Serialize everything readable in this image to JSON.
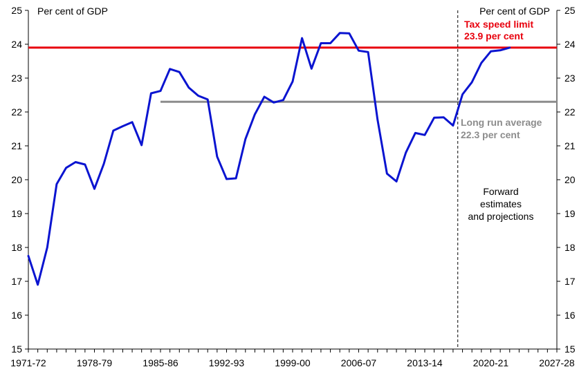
{
  "chart_data": {
    "type": "line",
    "y_unit_left": "Per cent of GDP",
    "y_unit_right": "Per cent of GDP",
    "ylim": [
      15,
      25
    ],
    "y_ticks": [
      "15",
      "16",
      "17",
      "18",
      "19",
      "20",
      "21",
      "22",
      "23",
      "24",
      "25"
    ],
    "x_tick_labels": [
      "1971-72",
      "1978-79",
      "1985-86",
      "1992-93",
      "1999-00",
      "2006-07",
      "2013-14",
      "2020-21",
      "2027-28"
    ],
    "x_start_year": 1971,
    "x_end_year": 2027,
    "series": [
      {
        "color": "#0a14d0",
        "x": [
          1971,
          1972,
          1973,
          1974,
          1975,
          1976,
          1977,
          1978,
          1979,
          1980,
          1981,
          1982,
          1983,
          1984,
          1985,
          1986,
          1987,
          1988,
          1989,
          1990,
          1991,
          1992,
          1993,
          1994,
          1995,
          1996,
          1997,
          1998,
          1999,
          2000,
          2001,
          2002,
          2003,
          2004,
          2005,
          2006,
          2007,
          2008,
          2009,
          2010,
          2011,
          2012,
          2013,
          2014,
          2015,
          2016,
          2017,
          2018,
          2019,
          2020,
          2021,
          2022
        ],
        "y": [
          17.75,
          16.9,
          18.0,
          19.87,
          20.35,
          20.52,
          20.45,
          19.73,
          20.47,
          21.45,
          21.58,
          21.7,
          21.02,
          22.55,
          22.62,
          23.27,
          23.18,
          22.72,
          22.48,
          22.37,
          20.68,
          20.02,
          20.04,
          21.2,
          21.93,
          22.45,
          22.28,
          22.35,
          22.9,
          24.18,
          23.28,
          24.03,
          24.03,
          24.33,
          24.32,
          23.81,
          23.77,
          21.77,
          20.18,
          19.95,
          20.8,
          21.38,
          21.32,
          21.83,
          21.84,
          21.6,
          22.52,
          22.88,
          23.45,
          23.79,
          23.82,
          23.9
        ]
      }
    ],
    "reference_lines": [
      {
        "name": "Tax speed limit",
        "value": 23.9,
        "color": "#e8000d",
        "x_from": 1971,
        "x_to": 2027
      },
      {
        "name": "Long run average",
        "value": 22.3,
        "color": "#8c8c8c",
        "x_from": 1985,
        "x_to": 2027
      }
    ],
    "forecast_divider_year": 2016.5,
    "annotations": {
      "tax_limit_line1": "Tax speed limit",
      "tax_limit_line2": "23.9 per cent",
      "long_run_line1": "Long run average",
      "long_run_line2": "22.3 per cent",
      "forward_line1": "Forward",
      "forward_line2": "estimates",
      "forward_line3": "and projections"
    }
  }
}
